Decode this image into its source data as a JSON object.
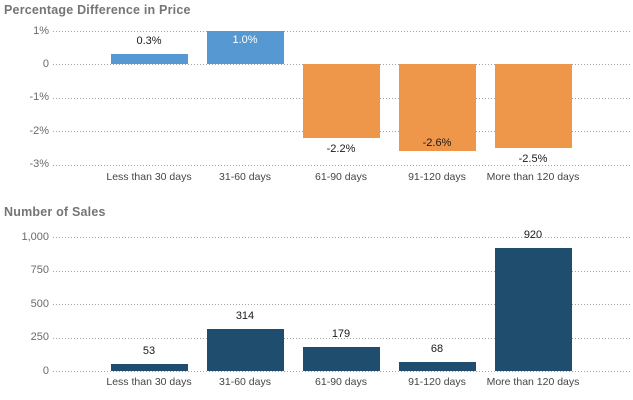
{
  "chart_data": [
    {
      "type": "bar",
      "title": "Percentage Difference in Price",
      "categories": [
        "Less than 30 days",
        "31-60 days",
        "61-90 days",
        "91-120 days",
        "More than 120 days"
      ],
      "values": [
        0.3,
        1.0,
        -2.2,
        -2.6,
        -2.5
      ],
      "value_labels": [
        {
          "text": "0.3%",
          "placement": "above",
          "color": "#1a1a1a"
        },
        {
          "text": "1.0%",
          "placement": "inside-top",
          "color": "#ffffff"
        },
        {
          "text": "-2.2%",
          "placement": "below",
          "color": "#1a1a1a"
        },
        {
          "text": "-2.6%",
          "placement": "inside-bottom",
          "color": "#1a1a1a"
        },
        {
          "text": "-2.5%",
          "placement": "below",
          "color": "#1a1a1a"
        }
      ],
      "yticks": [
        {
          "value": 1,
          "label": "1%"
        },
        {
          "value": 0,
          "label": "0"
        },
        {
          "value": -1,
          "label": "-1%"
        },
        {
          "value": -2,
          "label": "-2%"
        },
        {
          "value": -3,
          "label": "-3%"
        }
      ],
      "ylim": [
        -3,
        1
      ],
      "xlabel": "",
      "ylabel": "",
      "grid": "dotted-horizontal",
      "legend": "none",
      "bar_colors": {
        "positive": "#5598D2",
        "negative": "#EE964A"
      }
    },
    {
      "type": "bar",
      "title": "Number of Sales",
      "categories": [
        "Less than 30 days",
        "31-60 days",
        "61-90 days",
        "91-120 days",
        "More than 120 days"
      ],
      "values": [
        53,
        314,
        179,
        68,
        920
      ],
      "value_labels": [
        {
          "text": "53",
          "placement": "above",
          "color": "#1a1a1a"
        },
        {
          "text": "314",
          "placement": "above",
          "color": "#1a1a1a"
        },
        {
          "text": "179",
          "placement": "above",
          "color": "#1a1a1a"
        },
        {
          "text": "68",
          "placement": "above",
          "color": "#1a1a1a"
        },
        {
          "text": "920",
          "placement": "above",
          "color": "#1a1a1a"
        }
      ],
      "yticks": [
        {
          "value": 1000,
          "label": "1,000"
        },
        {
          "value": 750,
          "label": "750"
        },
        {
          "value": 500,
          "label": "500"
        },
        {
          "value": 250,
          "label": "250"
        },
        {
          "value": 0,
          "label": "0"
        }
      ],
      "ylim": [
        0,
        1000
      ],
      "xlabel": "",
      "ylabel": "",
      "grid": "dotted-horizontal",
      "legend": "none",
      "bar_colors": {
        "positive": "#1E4D6E",
        "negative": "#1E4D6E"
      }
    }
  ]
}
